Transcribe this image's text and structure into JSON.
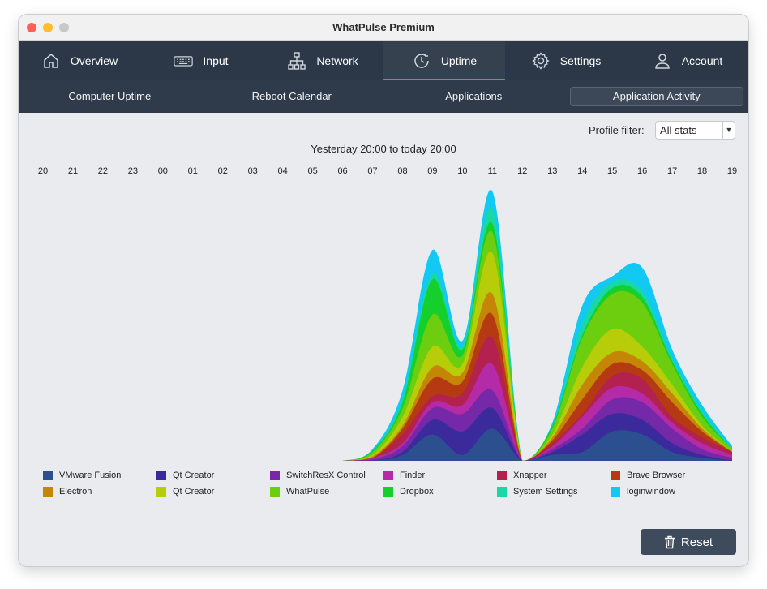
{
  "window": {
    "title": "WhatPulse Premium"
  },
  "nav": {
    "items": [
      {
        "label": "Overview",
        "icon": "home-icon"
      },
      {
        "label": "Input",
        "icon": "keyboard-icon"
      },
      {
        "label": "Network",
        "icon": "network-icon"
      },
      {
        "label": "Uptime",
        "icon": "clock-icon",
        "active": true
      },
      {
        "label": "Settings",
        "icon": "gear-icon"
      },
      {
        "label": "Account",
        "icon": "user-icon"
      }
    ]
  },
  "subnav": {
    "items": [
      {
        "label": "Computer Uptime"
      },
      {
        "label": "Reboot Calendar"
      },
      {
        "label": "Applications"
      },
      {
        "label": "Application Activity",
        "active": true
      }
    ]
  },
  "filter": {
    "label": "Profile filter:",
    "value": "All stats"
  },
  "range_title": "Yesterday 20:00 to today 20:00",
  "reset_label": "Reset",
  "chart_data": {
    "type": "area",
    "stacked": true,
    "x": [
      "20",
      "21",
      "22",
      "23",
      "00",
      "01",
      "02",
      "03",
      "04",
      "05",
      "06",
      "07",
      "08",
      "09",
      "10",
      "11",
      "12",
      "13",
      "14",
      "15",
      "16",
      "17",
      "18",
      "19"
    ],
    "series": [
      {
        "name": "VMware Fusion",
        "color": "#2c4f8f",
        "values": [
          0,
          0,
          0,
          0,
          0,
          0,
          0,
          0,
          0,
          0,
          0,
          0,
          0.2,
          0.9,
          0.2,
          1.1,
          0,
          0.2,
          0.3,
          1.0,
          0.9,
          0.3,
          0.1,
          0
        ]
      },
      {
        "name": "Qt Creator",
        "color": "#3b2a9c",
        "values": [
          0,
          0,
          0,
          0,
          0,
          0,
          0,
          0,
          0,
          0,
          0,
          0,
          0.1,
          0.5,
          0.8,
          0.7,
          0,
          0.1,
          0.6,
          0.6,
          0.5,
          0.3,
          0.1,
          0
        ]
      },
      {
        "name": "SwitchResX Control",
        "color": "#7528a8",
        "values": [
          0,
          0,
          0,
          0,
          0,
          0,
          0,
          0,
          0,
          0,
          0,
          0.05,
          0.2,
          0.4,
          0.6,
          0.6,
          0,
          0.1,
          0.2,
          0.5,
          0.6,
          0.5,
          0.2,
          0.1
        ]
      },
      {
        "name": "Finder",
        "color": "#b52aa6",
        "values": [
          0,
          0,
          0,
          0,
          0,
          0,
          0,
          0,
          0,
          0,
          0,
          0.05,
          0.1,
          0.2,
          0.3,
          0.9,
          0,
          0.1,
          0.4,
          0.4,
          0.3,
          0.2,
          0.2,
          0.1
        ]
      },
      {
        "name": "Xnapper",
        "color": "#b3214e",
        "values": [
          0,
          0,
          0,
          0,
          0,
          0,
          0,
          0,
          0,
          0,
          0,
          0,
          0.3,
          0.2,
          0.4,
          0.9,
          0,
          0.1,
          0.1,
          0.4,
          0.5,
          0.2,
          0.2,
          0.1
        ]
      },
      {
        "name": "Brave Browser",
        "color": "#b53a12",
        "values": [
          0,
          0,
          0,
          0,
          0,
          0,
          0,
          0,
          0,
          0,
          0,
          0,
          0.2,
          0.6,
          0.4,
          0.8,
          0,
          0.1,
          0.5,
          0.4,
          0.3,
          0.5,
          0.2,
          0
        ]
      },
      {
        "name": "Electron",
        "color": "#c58608",
        "values": [
          0,
          0,
          0,
          0,
          0,
          0,
          0,
          0,
          0,
          0,
          0,
          0.05,
          0.1,
          0.4,
          0.3,
          0.7,
          0,
          0.1,
          0.5,
          0.4,
          0.3,
          0.3,
          0.1,
          0
        ]
      },
      {
        "name": "Qt Creator",
        "color": "#b8cd09",
        "values": [
          0,
          0,
          0,
          0,
          0,
          0,
          0,
          0,
          0,
          0,
          0,
          0.05,
          0.3,
          0.7,
          0.3,
          1.4,
          0,
          0.1,
          0.6,
          0.8,
          0.5,
          0.3,
          0.1,
          0
        ]
      },
      {
        "name": "WhatPulse",
        "color": "#6cce0e",
        "values": [
          0,
          0,
          0,
          0,
          0,
          0,
          0,
          0,
          0,
          0,
          0,
          0.1,
          0.3,
          1.1,
          0.3,
          0.7,
          0,
          0.2,
          1.0,
          1.2,
          1.5,
          0.7,
          0.3,
          0.1
        ]
      },
      {
        "name": "Dropbox",
        "color": "#14cf2c",
        "values": [
          0,
          0,
          0,
          0,
          0,
          0,
          0,
          0,
          0,
          0,
          0,
          0.05,
          0.2,
          1.2,
          0.2,
          0.3,
          0,
          0.1,
          0.1,
          0.2,
          0.2,
          0.1,
          0.1,
          0
        ]
      },
      {
        "name": "System Settings",
        "color": "#18d9a5",
        "values": [
          0,
          0,
          0,
          0,
          0,
          0,
          0,
          0,
          0,
          0,
          0,
          0,
          0.1,
          0.2,
          0.1,
          0.5,
          0,
          0,
          0.4,
          0.2,
          0.2,
          0.1,
          0.1,
          0
        ]
      },
      {
        "name": "loginwindow",
        "color": "#11c9f2",
        "values": [
          0,
          0,
          0,
          0,
          0,
          0,
          0,
          0,
          0,
          0,
          0,
          0.05,
          0.3,
          0.8,
          0.2,
          0.6,
          0,
          0.1,
          0.6,
          0.2,
          0.8,
          0.3,
          0.2,
          0.1
        ]
      }
    ]
  }
}
